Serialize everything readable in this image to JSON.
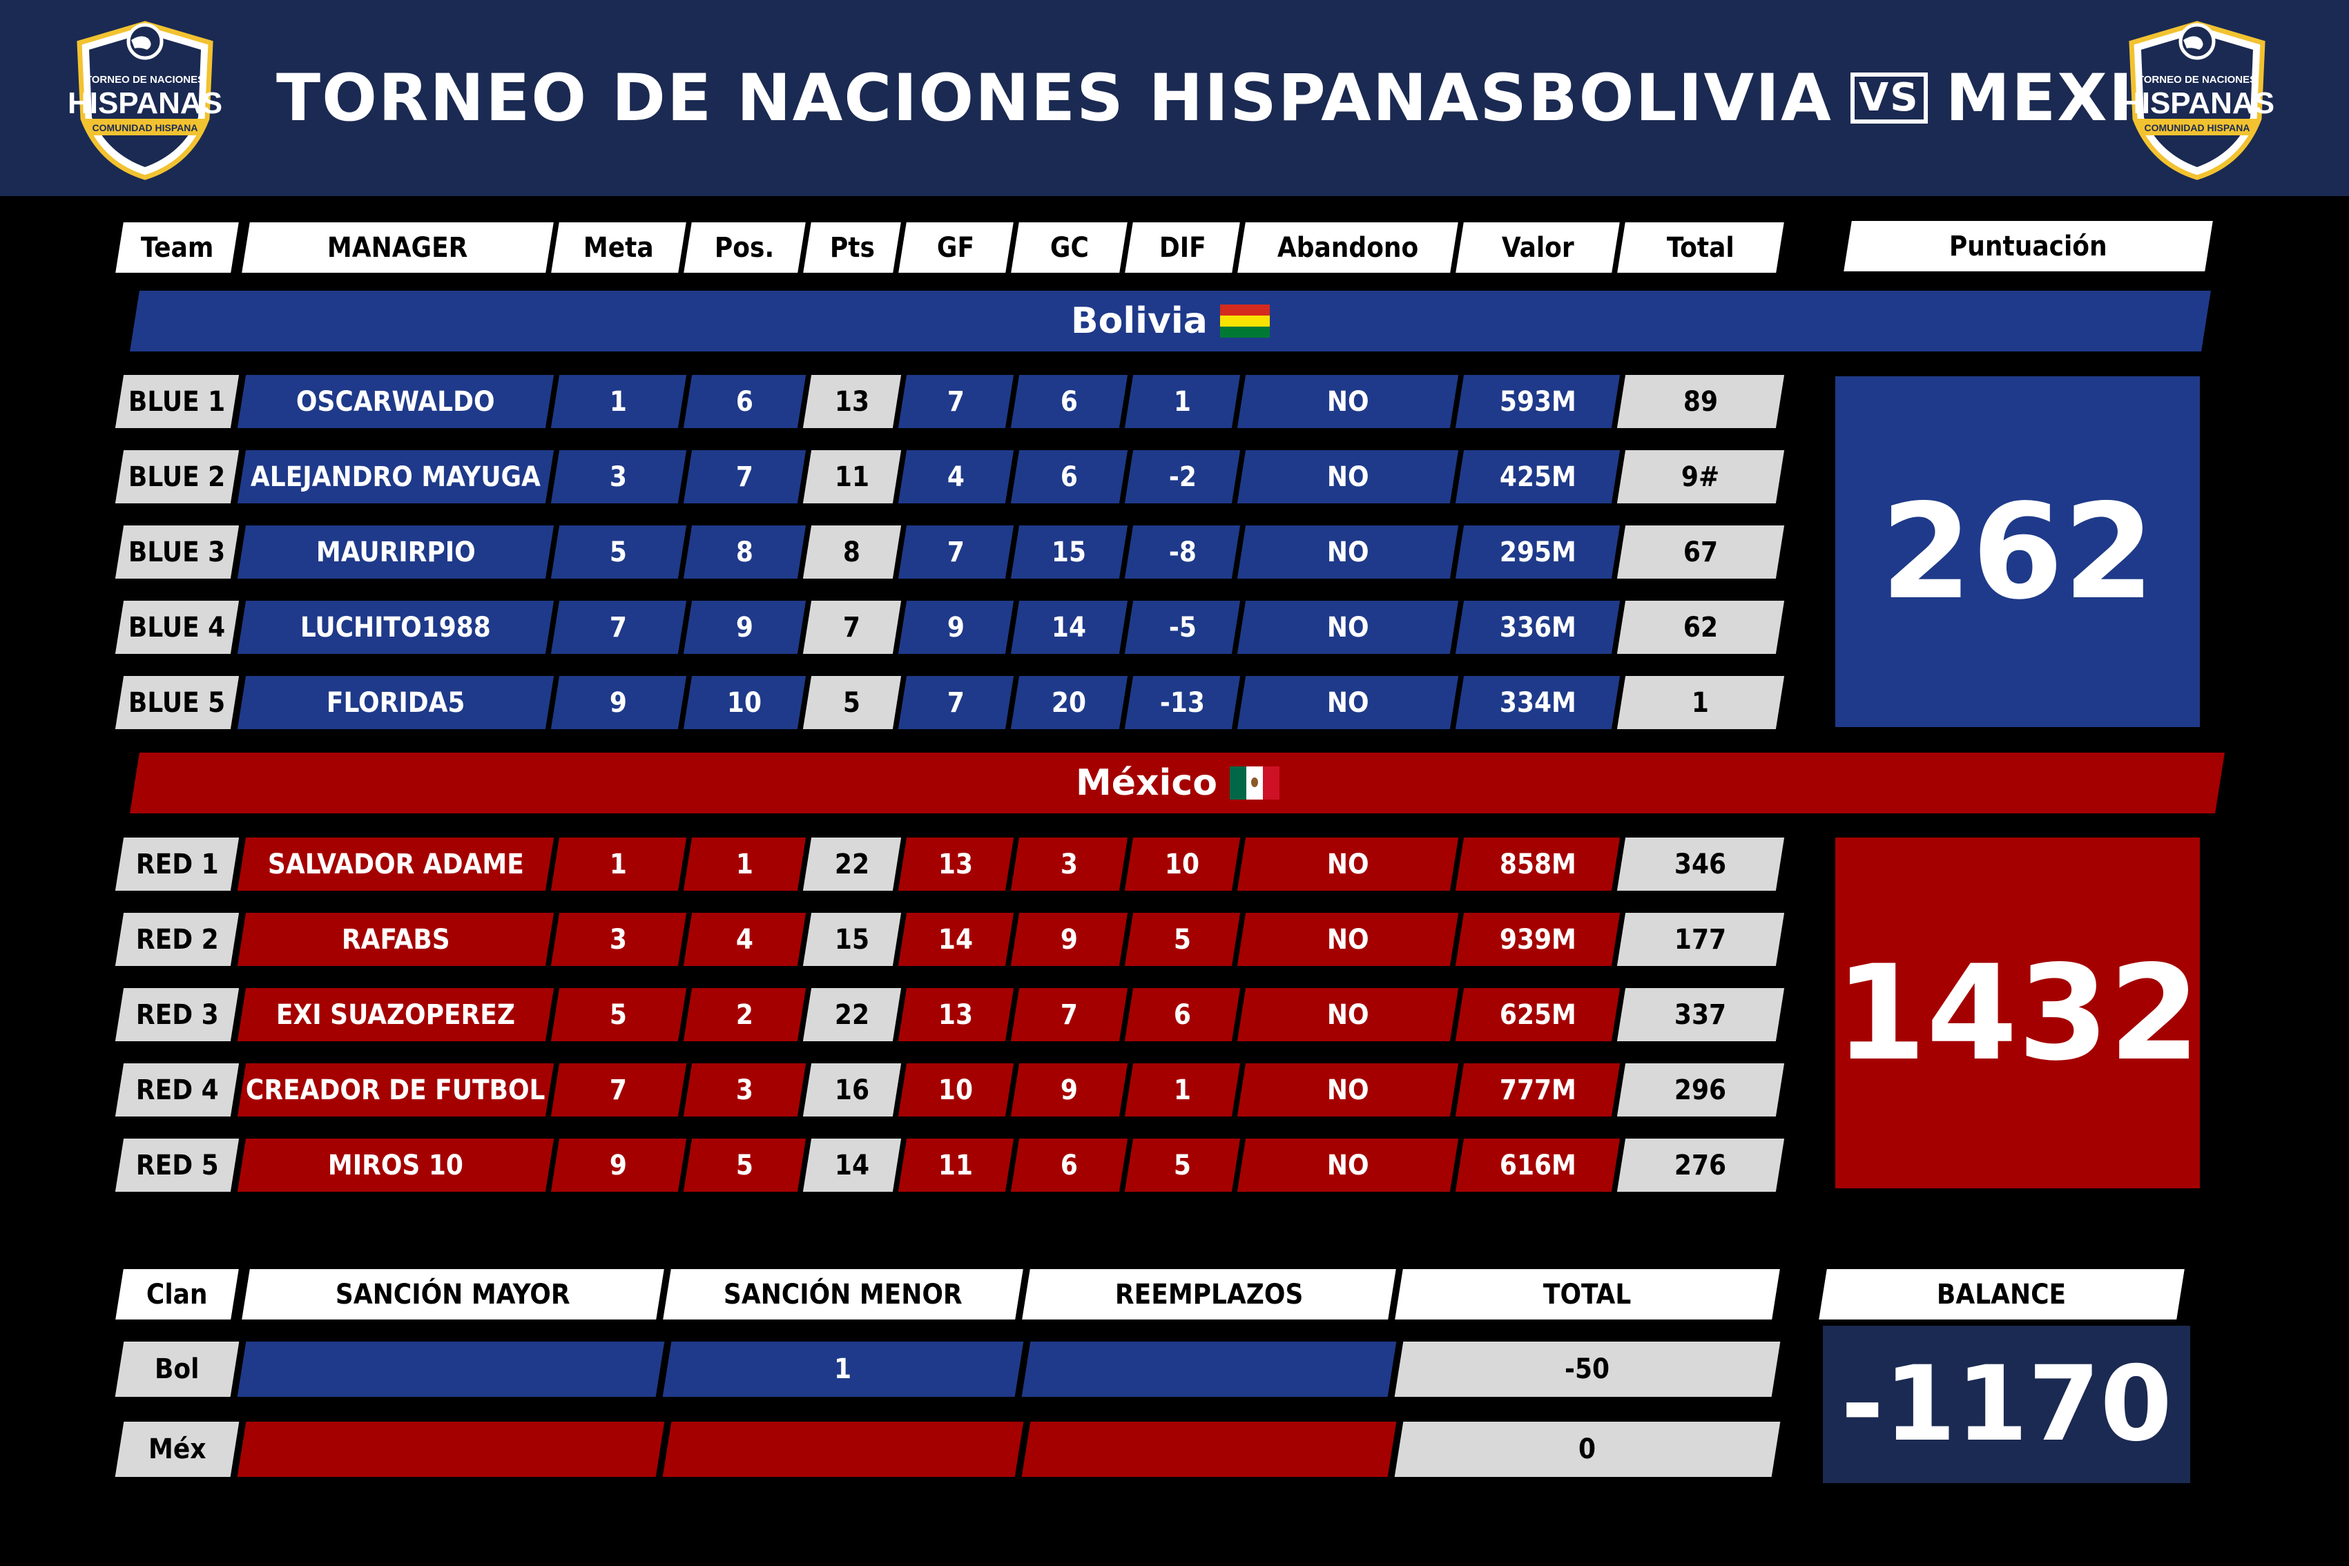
{
  "header": {
    "title_prefix": "TORNEO DE NACIONES HISPANAS",
    "team_a": "BOLIVIA",
    "vs": "VS",
    "team_b": "MEXICO",
    "logo": {
      "top_text": "TORNEO DE NACIONES",
      "main_text": "HISPANAS",
      "ribbon_text": "COMUNIDAD HISPANA",
      "icon": "globe-icon"
    }
  },
  "table": {
    "columns": [
      "Team",
      "MANAGER",
      "Meta",
      "Pos.",
      "Pts",
      "GF",
      "GC",
      "DIF",
      "Abandono",
      "Valor",
      "Total"
    ],
    "score_header": "Puntuación"
  },
  "bolivia": {
    "name": "Bolivia",
    "flag_colors": [
      "#d52b1e",
      "#f9e300",
      "#007934"
    ],
    "score": "262",
    "rows": [
      [
        "BLUE 1",
        "OSCARWALDO",
        "1",
        "6",
        "13",
        "7",
        "6",
        "1",
        "NO",
        "593M",
        "89"
      ],
      [
        "BLUE 2",
        "ALEJANDRO MAYUGA",
        "3",
        "7",
        "11",
        "4",
        "6",
        "-2",
        "NO",
        "425M",
        "9#"
      ],
      [
        "BLUE 3",
        "MAURIRPIO",
        "5",
        "8",
        "8",
        "7",
        "15",
        "-8",
        "NO",
        "295M",
        "67"
      ],
      [
        "BLUE 4",
        "LUCHITO1988",
        "7",
        "9",
        "7",
        "9",
        "14",
        "-5",
        "NO",
        "336M",
        "62"
      ],
      [
        "BLUE 5",
        "FLORIDA5",
        "9",
        "10",
        "5",
        "7",
        "20",
        "-13",
        "NO",
        "334M",
        "1"
      ]
    ]
  },
  "mexico": {
    "name": "México",
    "flag_colors": [
      "#006847",
      "#ffffff",
      "#ce1126"
    ],
    "score": "1432",
    "rows": [
      [
        "RED 1",
        "SALVADOR ADAME",
        "1",
        "1",
        "22",
        "13",
        "3",
        "10",
        "NO",
        "858M",
        "346"
      ],
      [
        "RED 2",
        "RAFABS",
        "3",
        "4",
        "15",
        "14",
        "9",
        "5",
        "NO",
        "939M",
        "177"
      ],
      [
        "RED 3",
        "EXI SUAZOPEREZ",
        "5",
        "2",
        "22",
        "13",
        "7",
        "6",
        "NO",
        "625M",
        "337"
      ],
      [
        "RED 4",
        "CREADOR DE FUTBOL",
        "7",
        "3",
        "16",
        "10",
        "9",
        "1",
        "NO",
        "777M",
        "296"
      ],
      [
        "RED 5",
        "MIROS 10",
        "9",
        "5",
        "14",
        "11",
        "6",
        "5",
        "NO",
        "616M",
        "276"
      ]
    ]
  },
  "sanctions": {
    "columns": [
      "Clan",
      "SANCIÓN MAYOR",
      "SANCIÓN MENOR",
      "REEMPLAZOS",
      "TOTAL"
    ],
    "balance_header": "BALANCE",
    "balance": "-1170",
    "rows": [
      [
        "Bol",
        "",
        "1",
        "",
        "-50"
      ],
      [
        "Méx",
        "",
        "",
        "",
        "0"
      ]
    ]
  },
  "colors": {
    "header_bg": "#1b2a52",
    "blue": "#1f3a8a",
    "red": "#a50000",
    "grey": "#d9d9d9",
    "balance_bg": "#1b2a52"
  }
}
